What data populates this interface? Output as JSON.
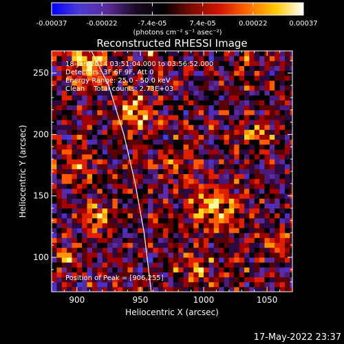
{
  "colorbar": {
    "tick_labels": [
      "-0.00037",
      "-0.00022",
      "-7.4e-05",
      "7.4e-05",
      "0.00022",
      "0.00037"
    ],
    "units_label": "(photons cm⁻² s⁻¹ asec⁻²)",
    "colors": [
      "#0000ff",
      "#4b3cd0",
      "#5a2a9a",
      "#1a0a24",
      "#000000",
      "#7a0a00",
      "#d21400",
      "#ff6a00",
      "#ffc800",
      "#ffffff"
    ]
  },
  "plot": {
    "title": "Reconstructed RHESSI Image",
    "info_lines": [
      "18-Jan-2014 03:51:04.000 to 03:56:52.000",
      "Detectors: 3F 6F 9F, Att 0",
      "Energy Range: 25.0 - 50.0 keV",
      "Clean    Total counts: 2.73E+03"
    ],
    "peak_label": "Position of Peak = [906,255]",
    "xlabel": "Heliocentric X (arcsec)",
    "ylabel": "Heliocentric Y (arcsec)",
    "x_ticks": [
      "900",
      "950",
      "1000",
      "1050"
    ],
    "y_ticks": [
      "100",
      "150",
      "200",
      "250"
    ],
    "xlim": [
      880,
      1070
    ],
    "ylim": [
      72,
      268
    ],
    "map_pixel_size_arcsec": 4,
    "palette": [
      "#0000ff",
      "#3f3fe0",
      "#4a2fc8",
      "#5a2aa0",
      "#4a1a78",
      "#2a0a40",
      "#000000",
      "#5a0000",
      "#a00000",
      "#e01e00",
      "#ff5a00",
      "#ff9600",
      "#ffd21e",
      "#ffff96"
    ]
  },
  "footer": {
    "timestamp": "17-May-2022 23:37"
  }
}
